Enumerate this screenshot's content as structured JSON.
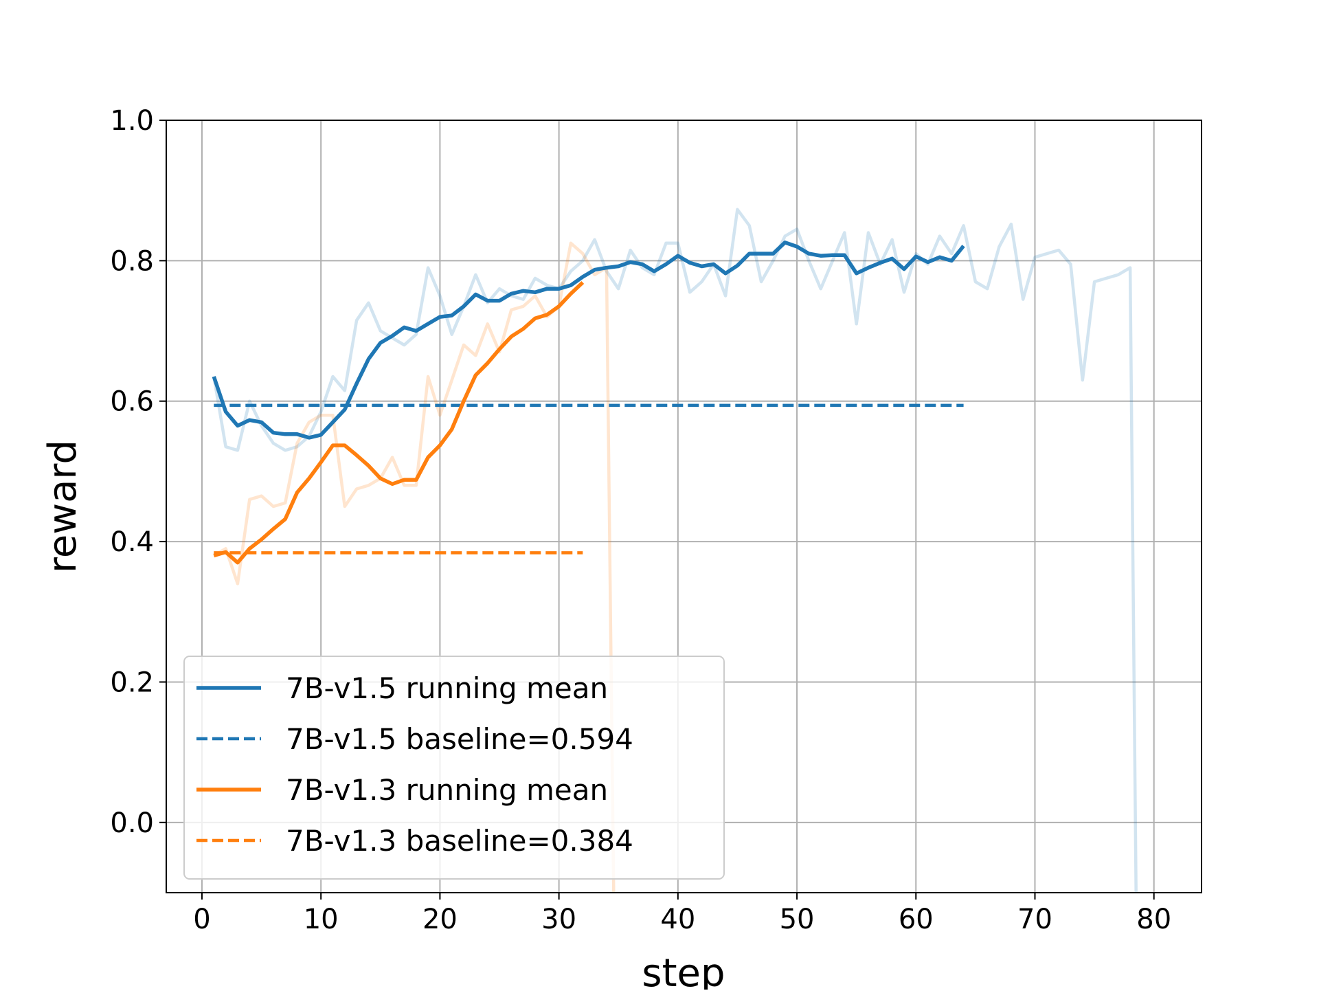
{
  "chart_data": {
    "type": "line",
    "xlabel": "step",
    "ylabel": "reward",
    "xlim": [
      -3,
      84
    ],
    "ylim": [
      -0.1,
      1.0
    ],
    "xticks": [
      0,
      10,
      20,
      30,
      40,
      50,
      60,
      70,
      80
    ],
    "yticks": [
      0.0,
      0.2,
      0.4,
      0.6,
      0.8,
      1.0
    ],
    "xtick_labels": [
      "0",
      "10",
      "20",
      "30",
      "40",
      "50",
      "60",
      "70",
      "80"
    ],
    "ytick_labels": [
      "0.0",
      "0.2",
      "0.4",
      "0.6",
      "0.8",
      "1.0"
    ],
    "grid": true,
    "legend_placement": "lower-left",
    "colors": {
      "v15": "#1f77b4",
      "v13": "#ff7f0e"
    },
    "series": [
      {
        "name": "7B-v1.5 running mean",
        "color": "#1f77b4",
        "style": "solid",
        "x": [
          1,
          2,
          3,
          4,
          5,
          6,
          7,
          8,
          9,
          10,
          11,
          12,
          13,
          14,
          15,
          16,
          17,
          18,
          19,
          20,
          21,
          22,
          23,
          24,
          25,
          26,
          27,
          28,
          29,
          30,
          31,
          32,
          33,
          34,
          35,
          36,
          37,
          38,
          39,
          40,
          41,
          42,
          43,
          44,
          45,
          46,
          47,
          48,
          49,
          50,
          51,
          52,
          53,
          54,
          55,
          56,
          57,
          58,
          59,
          60,
          61,
          62,
          63,
          64
        ],
        "y": [
          0.635,
          0.585,
          0.565,
          0.573,
          0.57,
          0.555,
          0.553,
          0.553,
          0.548,
          0.552,
          0.57,
          0.588,
          0.625,
          0.66,
          0.683,
          0.693,
          0.705,
          0.7,
          0.71,
          0.72,
          0.722,
          0.735,
          0.752,
          0.743,
          0.743,
          0.753,
          0.757,
          0.755,
          0.76,
          0.76,
          0.765,
          0.777,
          0.787,
          0.79,
          0.792,
          0.798,
          0.795,
          0.785,
          0.795,
          0.807,
          0.797,
          0.792,
          0.795,
          0.782,
          0.793,
          0.81,
          0.81,
          0.81,
          0.826,
          0.82,
          0.81,
          0.807,
          0.808,
          0.808,
          0.782,
          0.79,
          0.797,
          0.803,
          0.788,
          0.806,
          0.798,
          0.805,
          0.8,
          0.821
        ]
      },
      {
        "name": "7B-v1.5 baseline=0.594",
        "color": "#1f77b4",
        "style": "dashed",
        "x": [
          1,
          64
        ],
        "y": [
          0.594,
          0.594
        ]
      },
      {
        "name": "7B-v1.3 running mean",
        "color": "#ff7f0e",
        "style": "solid",
        "x": [
          1,
          2,
          3,
          4,
          5,
          6,
          7,
          8,
          9,
          10,
          11,
          12,
          13,
          14,
          15,
          16,
          17,
          18,
          19,
          20,
          21,
          22,
          23,
          24,
          25,
          26,
          27,
          28,
          29,
          30,
          31,
          32
        ],
        "y": [
          0.38,
          0.385,
          0.37,
          0.39,
          0.403,
          0.418,
          0.432,
          0.47,
          0.49,
          0.513,
          0.537,
          0.537,
          0.523,
          0.508,
          0.49,
          0.482,
          0.488,
          0.488,
          0.52,
          0.537,
          0.56,
          0.6,
          0.637,
          0.654,
          0.674,
          0.692,
          0.703,
          0.718,
          0.723,
          0.735,
          0.753,
          0.769
        ]
      },
      {
        "name": "7B-v1.3 baseline=0.384",
        "color": "#ff7f0e",
        "style": "dashed",
        "x": [
          1,
          32
        ],
        "y": [
          0.384,
          0.384
        ]
      },
      {
        "name": "",
        "color": "#1f77b4",
        "style": "faint",
        "x": [
          1,
          2,
          3,
          4,
          5,
          6,
          7,
          8,
          9,
          10,
          11,
          12,
          13,
          14,
          15,
          16,
          17,
          18,
          19,
          20,
          21,
          22,
          23,
          24,
          25,
          26,
          27,
          28,
          29,
          30,
          31,
          32,
          33,
          34,
          35,
          36,
          37,
          38,
          39,
          40,
          41,
          42,
          43,
          44,
          45,
          46,
          47,
          48,
          49,
          50,
          51,
          52,
          53,
          54,
          55,
          56,
          57,
          58,
          59,
          60,
          61,
          62,
          63,
          64,
          65,
          66,
          67,
          68,
          69,
          70,
          71,
          72,
          73,
          74,
          75,
          76,
          77,
          78,
          78.5
        ],
        "y": [
          0.635,
          0.535,
          0.53,
          0.6,
          0.565,
          0.54,
          0.53,
          0.535,
          0.55,
          0.585,
          0.635,
          0.615,
          0.715,
          0.74,
          0.7,
          0.69,
          0.68,
          0.695,
          0.79,
          0.75,
          0.695,
          0.735,
          0.78,
          0.74,
          0.76,
          0.75,
          0.745,
          0.775,
          0.765,
          0.76,
          0.785,
          0.8,
          0.83,
          0.785,
          0.76,
          0.815,
          0.79,
          0.78,
          0.825,
          0.825,
          0.755,
          0.77,
          0.795,
          0.75,
          0.873,
          0.85,
          0.77,
          0.8,
          0.835,
          0.845,
          0.8,
          0.76,
          0.8,
          0.84,
          0.71,
          0.84,
          0.795,
          0.83,
          0.755,
          0.81,
          0.795,
          0.835,
          0.81,
          0.85,
          0.77,
          0.76,
          0.82,
          0.852,
          0.745,
          0.805,
          0.81,
          0.815,
          0.795,
          0.63,
          0.77,
          0.775,
          0.78,
          0.79,
          -0.1
        ]
      },
      {
        "name": "",
        "color": "#ff7f0e",
        "style": "faint",
        "x": [
          1,
          2,
          3,
          4,
          5,
          6,
          7,
          8,
          9,
          10,
          11,
          12,
          13,
          14,
          15,
          16,
          17,
          18,
          19,
          20,
          21,
          22,
          23,
          24,
          25,
          26,
          27,
          28,
          29,
          30,
          31,
          32,
          33,
          34,
          34.6
        ],
        "y": [
          0.38,
          0.39,
          0.34,
          0.46,
          0.465,
          0.45,
          0.455,
          0.54,
          0.57,
          0.58,
          0.58,
          0.45,
          0.475,
          0.48,
          0.49,
          0.52,
          0.48,
          0.48,
          0.635,
          0.58,
          0.63,
          0.68,
          0.665,
          0.71,
          0.67,
          0.73,
          0.735,
          0.75,
          0.72,
          0.735,
          0.825,
          0.81,
          0.78,
          0.79,
          -0.1
        ]
      }
    ]
  }
}
